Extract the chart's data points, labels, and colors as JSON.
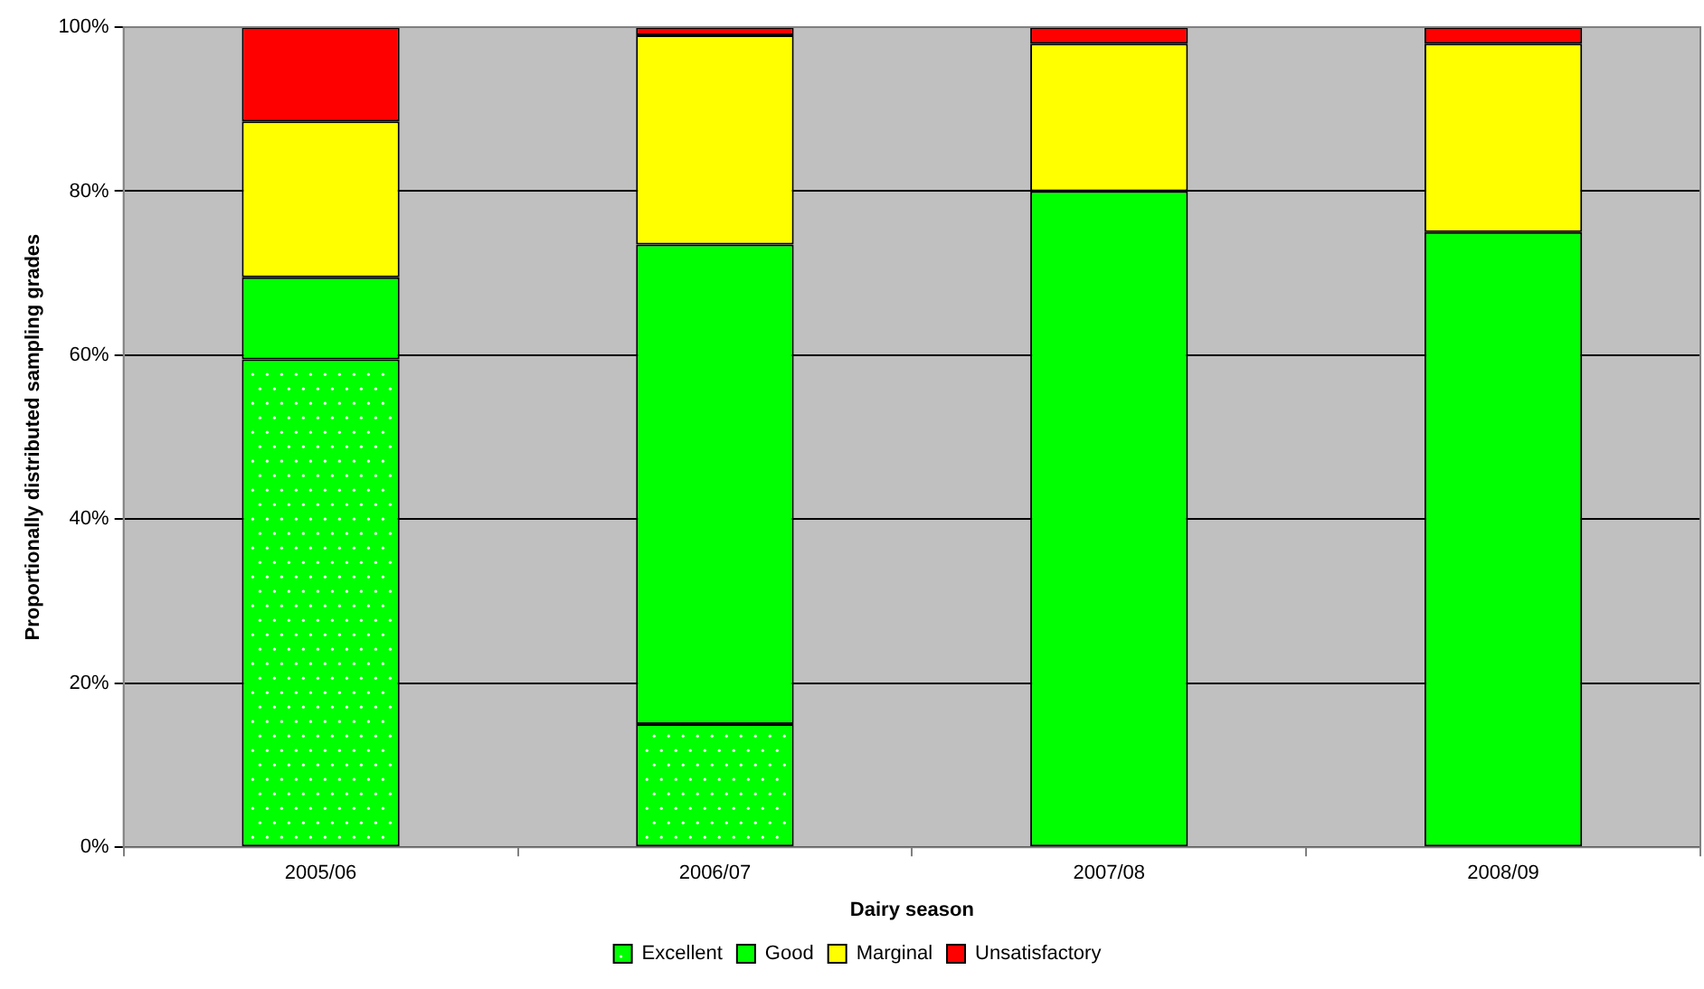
{
  "chart_data": {
    "type": "bar",
    "stacked": true,
    "xlabel": "Dairy season",
    "ylabel": "Proportionally distributed sampling grades",
    "categories": [
      "2005/06",
      "2006/07",
      "2007/08",
      "2008/09"
    ],
    "series": [
      {
        "name": "Excellent",
        "color": "#00ff00",
        "values": [
          59.5,
          15,
          0,
          0
        ]
      },
      {
        "name": "Good",
        "color": "#00ff00",
        "values": [
          10,
          58.5,
          80,
          75
        ]
      },
      {
        "name": "Marginal",
        "color": "#ffff00",
        "values": [
          19,
          25.5,
          18,
          23
        ]
      },
      {
        "name": "Unsatisfactory",
        "color": "#ff0000",
        "values": [
          11.5,
          1,
          2,
          2
        ]
      }
    ],
    "ylim": [
      0,
      100
    ],
    "yticks": [
      {
        "value": 0,
        "label": "0%"
      },
      {
        "value": 20,
        "label": "20%"
      },
      {
        "value": 40,
        "label": "40%"
      },
      {
        "value": 60,
        "label": "60%"
      },
      {
        "value": 80,
        "label": "80%"
      },
      {
        "value": 100,
        "label": "100%"
      }
    ],
    "grid": "y",
    "legend": "bottom"
  }
}
